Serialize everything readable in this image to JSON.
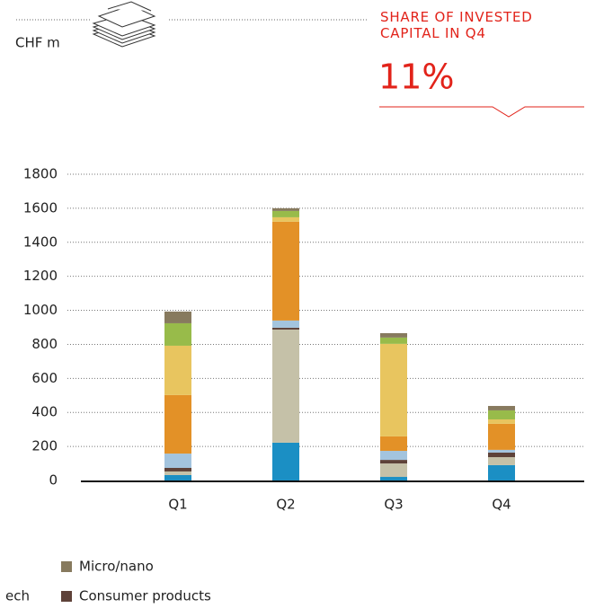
{
  "chart_data": {
    "type": "stacked_bar",
    "unit_label": "CHF m",
    "annotation": "SHARE OF INVESTED CAPITAL IN Q4",
    "highlight": "11%",
    "categories": [
      "Q1",
      "Q2",
      "Q3",
      "Q4"
    ],
    "ylim": [
      0,
      1800
    ],
    "yticks": [
      0,
      200,
      400,
      600,
      800,
      1000,
      1200,
      1400,
      1600,
      1800
    ],
    "grid": true,
    "series": [
      {
        "color": "#1b8fc4",
        "values": [
          32,
          222,
          21,
          90
        ]
      },
      {
        "color": "#c5c1a8",
        "values": [
          21,
          665,
          79,
          47
        ]
      },
      {
        "name": "Consumer products",
        "color": "#5e4239",
        "values": [
          21,
          11,
          21,
          27
        ]
      },
      {
        "name": "ech",
        "color": "#a3c4de",
        "values": [
          84,
          42,
          53,
          16
        ]
      },
      {
        "color": "#e39127",
        "values": [
          344,
          581,
          85,
          153
        ]
      },
      {
        "color": "#e8c55f",
        "values": [
          290,
          26,
          544,
          26
        ]
      },
      {
        "color": "#98bb4a",
        "values": [
          132,
          37,
          37,
          53
        ]
      },
      {
        "name": "Micro/nano",
        "color": "#877a5e",
        "values": [
          69,
          16,
          26,
          26
        ]
      }
    ]
  }
}
